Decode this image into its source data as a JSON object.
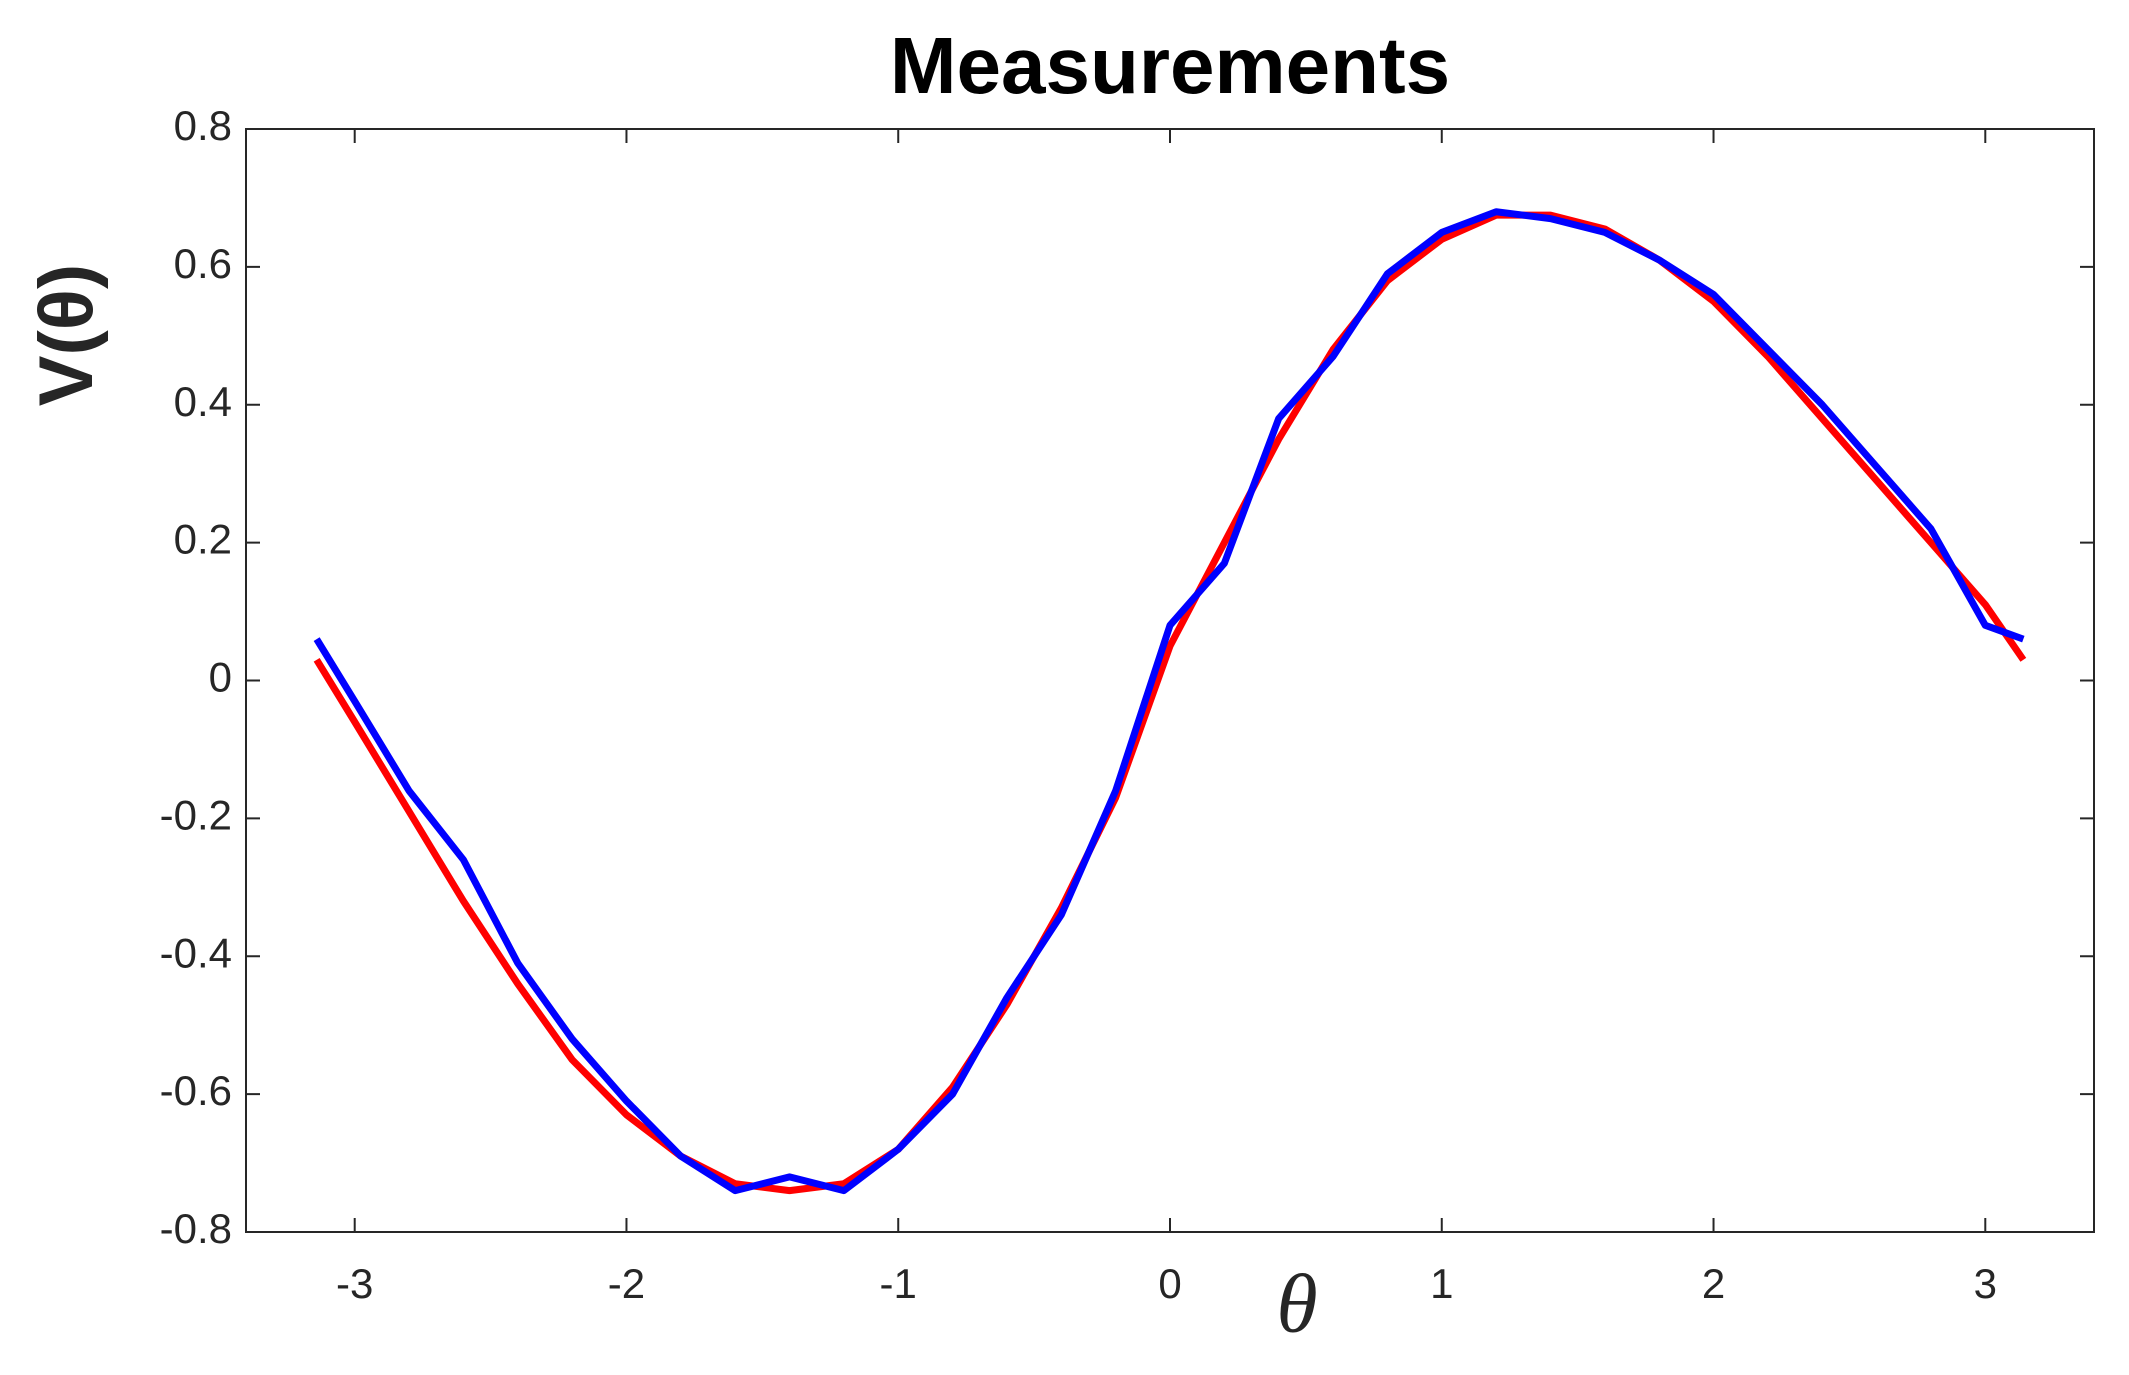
{
  "chart_data": {
    "type": "line",
    "title": "Measurements",
    "x_label": "θ",
    "y_label": "V(θ)",
    "x": [
      -3.14,
      -3.0,
      -2.8,
      -2.6,
      -2.4,
      -2.2,
      -2.0,
      -1.8,
      -1.6,
      -1.4,
      -1.2,
      -1.0,
      -0.8,
      -0.6,
      -0.4,
      -0.2,
      0.0,
      0.2,
      0.4,
      0.6,
      0.8,
      1.0,
      1.2,
      1.4,
      1.6,
      1.8,
      2.0,
      2.2,
      2.4,
      2.6,
      2.8,
      3.0,
      3.14
    ],
    "series": [
      {
        "color": "#ff0000",
        "values": [
          0.03,
          -0.06,
          -0.19,
          -0.32,
          -0.44,
          -0.55,
          -0.63,
          -0.69,
          -0.73,
          -0.74,
          -0.73,
          -0.68,
          -0.59,
          -0.47,
          -0.33,
          -0.17,
          0.05,
          0.2,
          0.35,
          0.48,
          0.58,
          0.64,
          0.675,
          0.675,
          0.655,
          0.61,
          0.55,
          0.47,
          0.38,
          0.29,
          0.2,
          0.11,
          0.03
        ]
      },
      {
        "color": "#0000ff",
        "values": [
          0.06,
          -0.03,
          -0.16,
          -0.26,
          -0.41,
          -0.52,
          -0.61,
          -0.69,
          -0.74,
          -0.72,
          -0.74,
          -0.68,
          -0.6,
          -0.46,
          -0.34,
          -0.16,
          0.08,
          0.17,
          0.38,
          0.47,
          0.59,
          0.65,
          0.68,
          0.67,
          0.65,
          0.61,
          0.56,
          0.48,
          0.4,
          0.31,
          0.22,
          0.08,
          0.06
        ]
      }
    ],
    "xlim": [
      -3.4,
      3.4
    ],
    "ylim": [
      -0.8,
      0.8
    ],
    "xticks": [
      -3,
      -2,
      -1,
      0,
      1,
      2,
      3
    ],
    "yticks": [
      -0.8,
      -0.6,
      -0.4,
      -0.2,
      0,
      0.2,
      0.4,
      0.6,
      0.8
    ],
    "grid": false
  }
}
